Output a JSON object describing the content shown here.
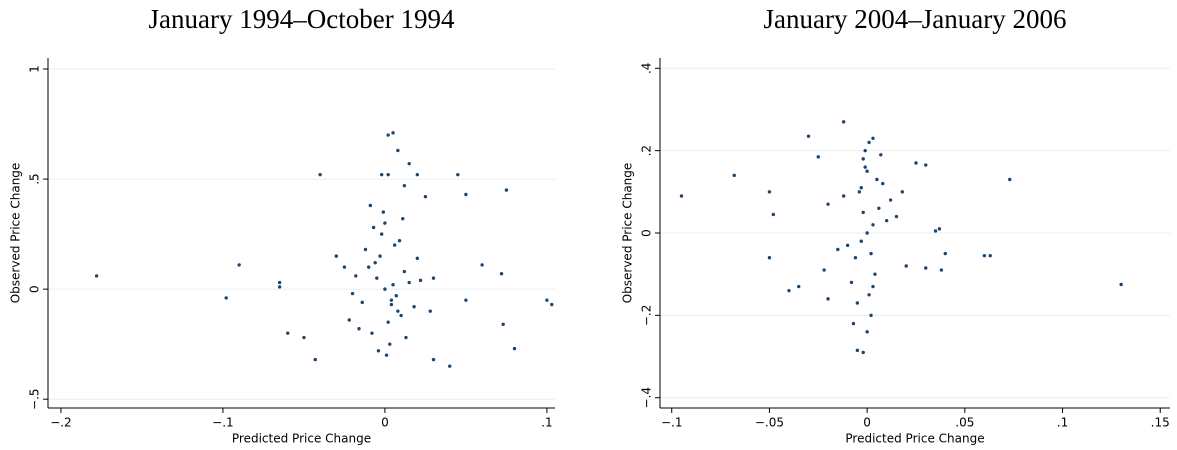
{
  "chart_data": [
    {
      "type": "scatter",
      "title": "January 1994–October 1994",
      "x_label": "Predicted Price Change",
      "y_label": "Observed Price Change",
      "xlim": [
        -0.208,
        0.105
      ],
      "ylim": [
        -0.54,
        1.05
      ],
      "xticks": [
        {
          "value": -0.2,
          "label": "−.2"
        },
        {
          "value": -0.1,
          "label": "−.1"
        },
        0,
        {
          "value": 0.1,
          "label": ".1"
        }
      ],
      "yticks": [
        {
          "value": -0.5,
          "label": "−.5"
        },
        0,
        {
          "value": 0.5,
          "label": ".5"
        },
        1
      ],
      "grid": true,
      "color": "#1a476f",
      "x": [
        -0.178,
        -0.09,
        -0.098,
        -0.065,
        -0.065,
        -0.04,
        -0.06,
        -0.05,
        -0.043,
        0.045,
        0.05,
        0.075,
        0.1,
        0.103,
        0.08,
        0.073,
        0.06,
        0.072,
        0.04,
        0.05,
        0.03,
        0.002,
        0.005,
        0.008,
        -0.002,
        0.002,
        0.015,
        0.02,
        0.025,
        0.012,
        0,
        -0.005,
        0.004,
        -0.01,
        0.008,
        -0.003,
        0.002,
        0.012,
        -0.014,
        0.006,
        -0.008,
        0.015,
        -0.018,
        0.01,
        -0.002,
        0.003,
        -0.006,
        0.007,
        -0.012,
        0.018,
        0,
        0.005,
        -0.004,
        0.009,
        -0.02,
        0.022,
        -0.016,
        0.013,
        -0.007,
        0.001,
        -0.025,
        0.028,
        -0.03,
        0.03,
        -0.022,
        0.02,
        -0.001,
        0.004,
        -0.009,
        0.011
      ],
      "values": [
        0.06,
        0.11,
        -0.04,
        0.03,
        0.01,
        0.52,
        -0.2,
        -0.22,
        -0.32,
        0.52,
        0.43,
        0.45,
        -0.05,
        -0.07,
        -0.27,
        -0.16,
        0.11,
        0.07,
        -0.35,
        -0.05,
        -0.32,
        0.7,
        0.71,
        0.63,
        0.52,
        0.52,
        0.57,
        0.52,
        0.42,
        0.47,
        0,
        0.05,
        -0.05,
        0.1,
        -0.1,
        0.15,
        -0.15,
        0.08,
        -0.06,
        0.2,
        -0.2,
        0.03,
        0.06,
        -0.12,
        0.25,
        -0.25,
        0.12,
        -0.03,
        0.18,
        -0.08,
        0.3,
        0.02,
        -0.28,
        0.22,
        -0.02,
        0.04,
        -0.18,
        -0.22,
        0.28,
        -0.3,
        0.1,
        -0.1,
        0.15,
        0.05,
        -0.14,
        0.14,
        0.35,
        -0.07,
        0.38,
        0.32
      ]
    },
    {
      "type": "scatter",
      "title": "January 2004–January 2006",
      "x_label": "Predicted Price Change",
      "y_label": "Observed Price Change",
      "xlim": [
        -0.106,
        0.155
      ],
      "ylim": [
        -0.425,
        0.425
      ],
      "xticks": [
        {
          "value": -0.1,
          "label": "−.1"
        },
        {
          "value": -0.05,
          "label": "−.05"
        },
        0,
        {
          "value": 0.05,
          "label": ".05"
        },
        {
          "value": 0.1,
          "label": ".1"
        },
        {
          "value": 0.15,
          "label": ".15"
        }
      ],
      "yticks": [
        {
          "value": -0.4,
          "label": "−.4"
        },
        {
          "value": -0.2,
          "label": "−.2"
        },
        0,
        {
          "value": 0.2,
          "label": ".2"
        },
        {
          "value": 0.4,
          "label": ".4"
        }
      ],
      "grid": true,
      "color": "#1a476f",
      "x": [
        -0.095,
        -0.068,
        -0.05,
        -0.05,
        -0.048,
        -0.03,
        -0.012,
        0.073,
        0.13,
        0.06,
        0.063,
        0.04,
        0.035,
        0.037,
        0.03,
        0.038,
        0.025,
        0.03,
        -0.04,
        -0.035,
        -0.005,
        -0.002,
        0.003,
        -0.025,
        -0.02,
        0,
        -0.002,
        0.002,
        -0.004,
        0.004,
        0,
        0.001,
        -0.001,
        0.003,
        -0.003,
        0.006,
        -0.006,
        0.008,
        -0.008,
        0.01,
        -0.01,
        0.012,
        -0.012,
        0.002,
        -0.002,
        0,
        0.005,
        -0.005,
        0.015,
        -0.015,
        0.018,
        -0.02,
        0.02,
        -0.022,
        0.001,
        -0.001,
        0.003,
        -0.003,
        0.007,
        -0.007
      ],
      "values": [
        0.09,
        0.14,
        0.1,
        -0.06,
        0.045,
        0.235,
        0.27,
        0.13,
        -0.125,
        -0.055,
        -0.055,
        -0.05,
        0.005,
        0.01,
        -0.085,
        -0.09,
        0.17,
        0.165,
        -0.14,
        -0.13,
        -0.285,
        -0.29,
        0.23,
        0.185,
        -0.16,
        0,
        0.05,
        -0.05,
        0.1,
        -0.1,
        0.15,
        -0.15,
        0.2,
        0.02,
        -0.02,
        0.06,
        -0.06,
        0.12,
        -0.12,
        0.03,
        -0.03,
        0.08,
        0.09,
        -0.2,
        0.18,
        -0.24,
        0.13,
        -0.17,
        0.04,
        -0.04,
        0.1,
        0.07,
        -0.08,
        -0.09,
        0.22,
        0.16,
        -0.13,
        0.11,
        0.19,
        -0.22
      ]
    }
  ]
}
